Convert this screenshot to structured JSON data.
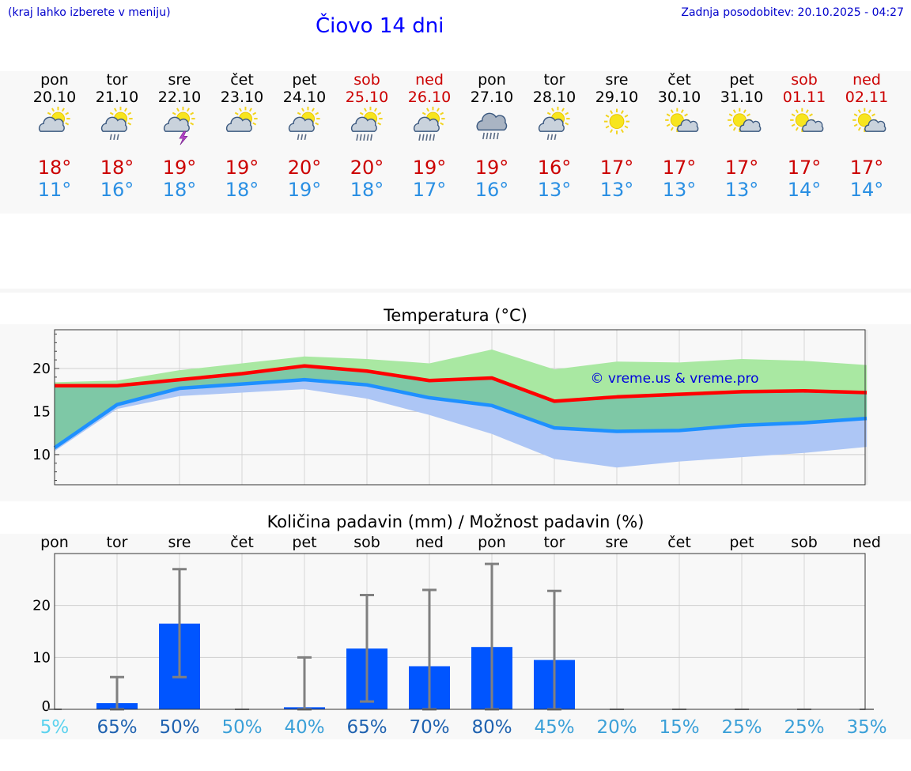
{
  "header": {
    "hint": "(kraj lahko izberete v meniju)",
    "title": "Čiovo 14 dni",
    "updated": "Zadnja posodobitev: 20.10.2025 - 04:27"
  },
  "days": [
    {
      "name": "pon",
      "date": "20.10",
      "weekend": false,
      "icon": "sun-cloud-icon",
      "max": "18°",
      "min": "11°"
    },
    {
      "name": "tor",
      "date": "21.10",
      "weekend": false,
      "icon": "sun-cloud-rain-icon",
      "max": "18°",
      "min": "16°"
    },
    {
      "name": "sre",
      "date": "22.10",
      "weekend": false,
      "icon": "sun-cloud-thunder-icon",
      "max": "19°",
      "min": "18°"
    },
    {
      "name": "čet",
      "date": "23.10",
      "weekend": false,
      "icon": "sun-cloud-icon",
      "max": "19°",
      "min": "18°"
    },
    {
      "name": "pet",
      "date": "24.10",
      "weekend": false,
      "icon": "sun-cloud-rain-icon",
      "max": "20°",
      "min": "19°"
    },
    {
      "name": "sob",
      "date": "25.10",
      "weekend": true,
      "icon": "sun-cloud-heavy-rain-icon",
      "max": "20°",
      "min": "18°"
    },
    {
      "name": "ned",
      "date": "26.10",
      "weekend": true,
      "icon": "sun-cloud-heavy-rain-icon",
      "max": "19°",
      "min": "17°"
    },
    {
      "name": "pon",
      "date": "27.10",
      "weekend": false,
      "icon": "cloud-heavy-rain-icon",
      "max": "19°",
      "min": "16°"
    },
    {
      "name": "tor",
      "date": "28.10",
      "weekend": false,
      "icon": "sun-cloud-rain-icon",
      "max": "16°",
      "min": "13°"
    },
    {
      "name": "sre",
      "date": "29.10",
      "weekend": false,
      "icon": "sun-icon",
      "max": "17°",
      "min": "13°"
    },
    {
      "name": "čet",
      "date": "30.10",
      "weekend": false,
      "icon": "sun-small-cloud-icon",
      "max": "17°",
      "min": "13°"
    },
    {
      "name": "pet",
      "date": "31.10",
      "weekend": false,
      "icon": "sun-small-cloud-icon",
      "max": "17°",
      "min": "13°"
    },
    {
      "name": "sob",
      "date": "01.11",
      "weekend": true,
      "icon": "sun-small-cloud-icon",
      "max": "17°",
      "min": "14°"
    },
    {
      "name": "ned",
      "date": "02.11",
      "weekend": true,
      "icon": "sun-small-cloud-icon",
      "max": "17°",
      "min": "14°"
    }
  ],
  "colors": {
    "max_line": "#ff0000",
    "min_line": "#1e90ff",
    "max_band": "#a9e8a2",
    "min_band": "#adc6f5",
    "overlap_band": "#7ec8a6",
    "precip_bar": "#0055ff",
    "error_bar": "#808080",
    "weekend_text": "#cc0000"
  },
  "chart_data": [
    {
      "type": "line",
      "title": "Temperatura (°C)",
      "watermark": "© vreme.us & vreme.pro",
      "ylim": [
        6.5,
        24.5
      ],
      "yticks": [
        10,
        15,
        20
      ],
      "grid": true,
      "categories": [
        "20.10",
        "21.10",
        "22.10",
        "23.10",
        "24.10",
        "25.10",
        "26.10",
        "27.10",
        "28.10",
        "29.10",
        "30.10",
        "31.10",
        "01.11",
        "02.11"
      ],
      "series": [
        {
          "name": "max",
          "values": [
            18.0,
            18.0,
            18.7,
            19.4,
            20.3,
            19.7,
            18.6,
            18.9,
            16.2,
            16.7,
            17.0,
            17.3,
            17.4,
            17.2
          ]
        },
        {
          "name": "min",
          "values": [
            10.8,
            15.8,
            17.7,
            18.2,
            18.7,
            18.1,
            16.6,
            15.7,
            13.1,
            12.7,
            12.8,
            13.4,
            13.7,
            14.2
          ]
        },
        {
          "name": "max_range_low",
          "values": [
            17.4,
            17.4,
            17.9,
            18.4,
            19.4,
            19.0,
            16.9,
            16.1,
            12.6,
            12.8,
            13.2,
            13.8,
            14.0,
            14.4
          ]
        },
        {
          "name": "max_range_high",
          "values": [
            18.4,
            18.6,
            19.8,
            20.6,
            21.4,
            21.1,
            20.6,
            22.2,
            19.9,
            20.8,
            20.7,
            21.1,
            20.9,
            20.4
          ]
        },
        {
          "name": "min_range_low",
          "values": [
            10.4,
            15.3,
            16.8,
            17.2,
            17.6,
            16.5,
            14.6,
            12.4,
            9.5,
            8.5,
            9.2,
            9.7,
            10.2,
            10.9
          ]
        },
        {
          "name": "min_range_high",
          "values": [
            11.3,
            16.3,
            18.0,
            18.4,
            18.9,
            18.3,
            17.1,
            16.3,
            13.5,
            12.8,
            13.0,
            13.6,
            13.9,
            14.3
          ]
        }
      ]
    },
    {
      "type": "bar",
      "title": "Količina padavin (mm) / Možnost padavin (%)",
      "ylim": [
        0,
        30
      ],
      "yticks": [
        0,
        10,
        20
      ],
      "grid": true,
      "categories": [
        "pon",
        "tor",
        "sre",
        "čet",
        "pet",
        "sob",
        "ned",
        "pon",
        "tor",
        "sre",
        "čet",
        "pet",
        "sob",
        "ned"
      ],
      "values": [
        0,
        1.2,
        16.5,
        0,
        0.4,
        11.7,
        8.3,
        12.0,
        9.5,
        0,
        0,
        0,
        0,
        0
      ],
      "error_low": [
        0,
        0,
        6.2,
        0,
        0,
        1.5,
        0,
        0,
        0,
        0,
        0,
        0,
        0,
        0
      ],
      "error_high": [
        0,
        6.2,
        27.0,
        0,
        10.0,
        22.0,
        23.0,
        28.0,
        22.8,
        0,
        0,
        0,
        0,
        0
      ],
      "probability": [
        "5%",
        "65%",
        "50%",
        "50%",
        "40%",
        "65%",
        "70%",
        "80%",
        "45%",
        "20%",
        "15%",
        "25%",
        "25%",
        "35%"
      ],
      "probability_colors": [
        "#5bd2ee",
        "#1f62b0",
        "#1f62b0",
        "#3ba0d8",
        "#3ba0d8",
        "#1f62b0",
        "#1f62b0",
        "#1f62b0",
        "#3ba0d8",
        "#3ba0d8",
        "#3ba0d8",
        "#3ba0d8",
        "#3ba0d8",
        "#3ba0d8"
      ]
    }
  ]
}
